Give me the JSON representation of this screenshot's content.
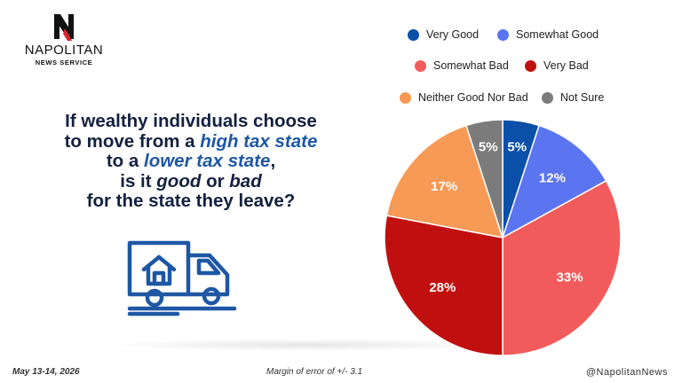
{
  "brand": {
    "name": "NAPOLITAN",
    "subtitle": "NEWS SERVICE"
  },
  "question": {
    "line1": "If wealthy individuals choose",
    "line2a": "to move from a ",
    "line2b": "high tax state",
    "line3a": "to a ",
    "line3b": "lower tax state",
    "line3c": ",",
    "line4a": "is it ",
    "line4b": "good",
    "line4c": " or ",
    "line4d": "bad",
    "line5": "for the state they leave?"
  },
  "chart_data": {
    "type": "pie",
    "title": "",
    "legend_placement": "top",
    "slices": [
      {
        "label": "Very Good",
        "value": 5,
        "display": "5%",
        "color": "#0a4fa8"
      },
      {
        "label": "Somewhat Good",
        "value": 12,
        "display": "12%",
        "color": "#5b74f0"
      },
      {
        "label": "Somewhat Bad",
        "value": 33,
        "display": "33%",
        "color": "#f25b5b"
      },
      {
        "label": "Very Bad",
        "value": 28,
        "display": "28%",
        "color": "#c10f0f"
      },
      {
        "label": "Neither Good Nor Bad",
        "value": 17,
        "display": "17%",
        "color": "#f79a55"
      },
      {
        "label": "Not Sure",
        "value": 5,
        "display": "5%",
        "color": "#7b7b7b"
      }
    ]
  },
  "footer": {
    "date": "May 13-14, 2026",
    "margin": "Margin of error of +/- 3.1",
    "handle": "@NapolitanNews"
  },
  "icons": {
    "logo": "napolitan-n-logo-icon",
    "truck": "moving-truck-house-icon"
  }
}
